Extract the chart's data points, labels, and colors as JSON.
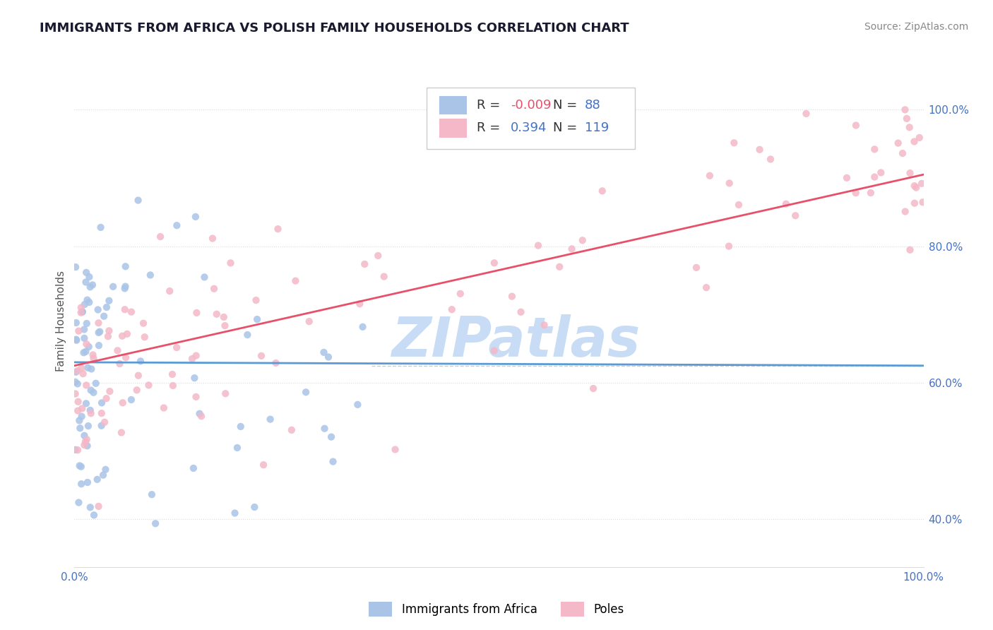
{
  "title": "IMMIGRANTS FROM AFRICA VS POLISH FAMILY HOUSEHOLDS CORRELATION CHART",
  "source": "Source: ZipAtlas.com",
  "ylabel": "Family Households",
  "xlim": [
    0.0,
    1.0
  ],
  "ylim": [
    0.33,
    1.05
  ],
  "legend_r1": "-0.009",
  "legend_n1": "88",
  "legend_r2": "0.394",
  "legend_n2": "119",
  "series1_color": "#aac4e8",
  "series2_color": "#f4b8c8",
  "line1_color": "#5b9bd5",
  "line2_color": "#e8506a",
  "watermark": "ZIPatlas",
  "watermark_color": "#c8ddf5",
  "dashed_line_y": 0.625,
  "background_color": "#ffffff",
  "title_color": "#1a1a2e",
  "source_color": "#888888",
  "tick_color": "#4472c4",
  "ylabel_color": "#555555"
}
